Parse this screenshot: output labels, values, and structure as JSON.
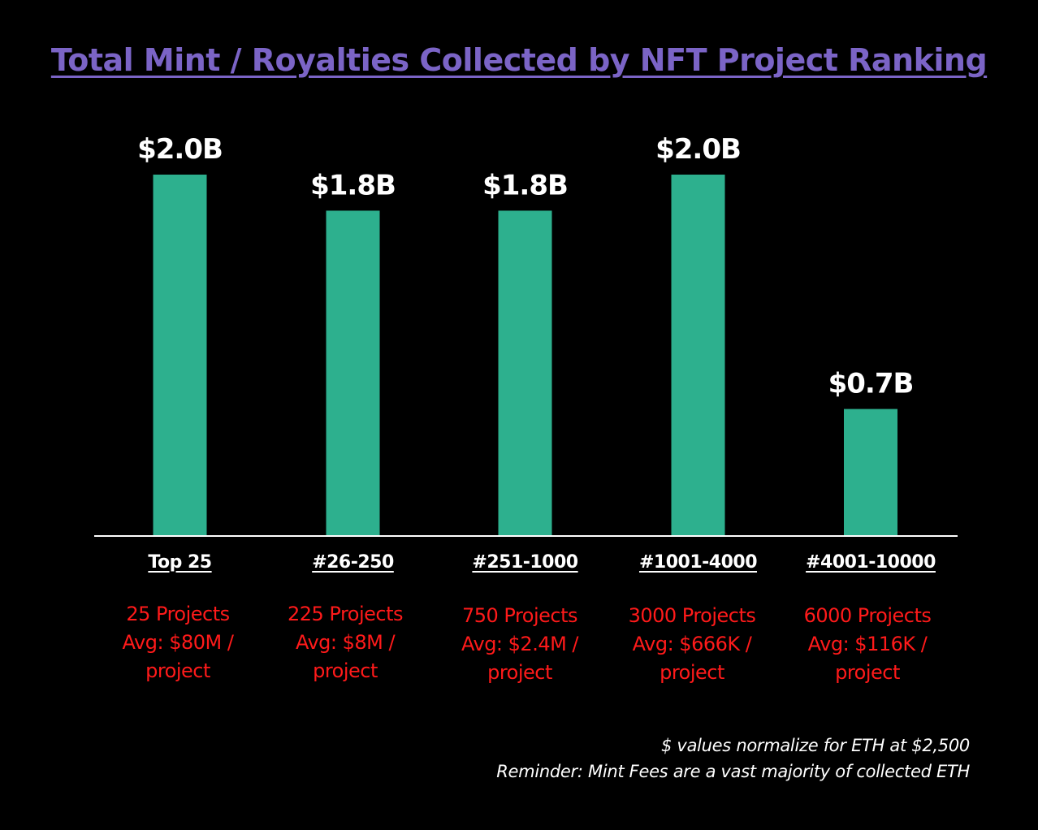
{
  "colors": {
    "background": "#000000",
    "title": "#7b64c6",
    "bar": "#2db08e",
    "value_label": "#ffffff",
    "notes": "#ff1a1a",
    "axis": "#ffffff"
  },
  "chart_data": {
    "type": "bar",
    "title": "Total Mint / Royalties Collected by NFT Project Ranking",
    "xlabel": "",
    "ylabel": "",
    "unit": "$B",
    "ylim": [
      0,
      2.1
    ],
    "grid": false,
    "legend": "none",
    "categories": [
      "Top 25",
      "#26-250",
      "#251-1000",
      "#1001-4000",
      "#4001-10000"
    ],
    "values": [
      2.0,
      1.8,
      1.8,
      2.0,
      0.7
    ],
    "data_labels": [
      "$2.0B",
      "$1.8B",
      "$1.8B",
      "$2.0B",
      "$0.7B"
    ],
    "annotations": [
      [
        "25 Projects",
        "Avg: $80M /",
        "project"
      ],
      [
        "225 Projects",
        "Avg: $8M /",
        "project"
      ],
      [
        "750 Projects",
        "Avg: $2.4M /",
        "project"
      ],
      [
        "3000 Projects",
        "Avg: $666K /",
        "project"
      ],
      [
        "6000 Projects",
        "Avg: $116K /",
        "project"
      ]
    ]
  },
  "footnotes": [
    "$ values normalize for ETH at $2,500",
    "Reminder: Mint Fees are a vast majority of collected ETH"
  ]
}
